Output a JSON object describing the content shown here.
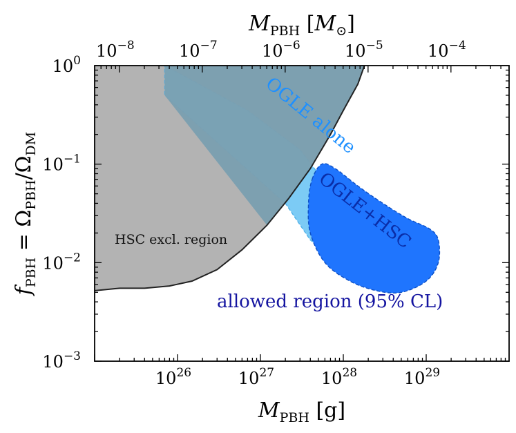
{
  "chart_data": {
    "type": "area",
    "x_scale": "log",
    "y_scale": "log",
    "x": {
      "label": "M_PBH [g]",
      "range": [
        1e+25,
        1e+30
      ],
      "tick_values": [
        1e+26,
        1e+27,
        1e+28,
        1e+29
      ]
    },
    "x_top": {
      "label": "M_PBH [M_⊙]",
      "tick_values": [
        1e-08,
        1e-07,
        1e-06,
        1e-05,
        0.0001
      ]
    },
    "y": {
      "label": "f_PBH = Ω_PBH/Ω_DM",
      "range": [
        0.001,
        1
      ],
      "tick_values": [
        0.001,
        0.01,
        0.1,
        1
      ]
    },
    "regions": [
      {
        "name": "HSC excl. region",
        "color": "#b3b3b3",
        "boundary": [
          [
            1e+25,
            0.0052
          ],
          [
            2e+25,
            0.0055
          ],
          [
            4e+25,
            0.0055
          ],
          [
            8e+25,
            0.0058
          ],
          [
            1.5e+26,
            0.0065
          ],
          [
            3e+26,
            0.0085
          ],
          [
            6e+26,
            0.0135
          ],
          [
            1.2e+27,
            0.024
          ],
          [
            2.2e+27,
            0.045
          ],
          [
            4e+27,
            0.09
          ],
          [
            7e+27,
            0.2
          ],
          [
            1e+28,
            0.35
          ],
          [
            1.5e+28,
            0.65
          ],
          [
            1.8e+28,
            1.0
          ]
        ]
      },
      {
        "name": "OGLE alone",
        "color": "#7ccbf5",
        "upper": [
          [
            7e+25,
            1.0
          ],
          [
            7e+26,
            0.35
          ],
          [
            3e+27,
            0.14
          ],
          [
            5e+27,
            0.08
          ]
        ],
        "lower": [
          [
            7e+25,
            0.5
          ],
          [
            2e+27,
            0.04
          ],
          [
            4e+27,
            0.017
          ],
          [
            8e+27,
            0.011
          ],
          [
            1.5e+28,
            0.007
          ],
          [
            3e+28,
            0.0055
          ],
          [
            5e+28,
            0.005
          ]
        ]
      },
      {
        "name": "OGLE+HSC",
        "color": "#1f75fe",
        "outline": [
          [
            4.2e+27,
            0.07
          ],
          [
            5.5e+27,
            0.1
          ],
          [
            8e+27,
            0.09
          ],
          [
            1.5e+28,
            0.06
          ],
          [
            3e+28,
            0.04
          ],
          [
            6e+28,
            0.028
          ],
          [
            1.1e+29,
            0.022
          ],
          [
            1.4e+29,
            0.017
          ],
          [
            1.4e+29,
            0.01
          ],
          [
            1e+29,
            0.0065
          ],
          [
            5e+28,
            0.005
          ],
          [
            2.5e+28,
            0.0052
          ],
          [
            1.2e+28,
            0.0065
          ],
          [
            6e+27,
            0.01
          ],
          [
            4e+27,
            0.02
          ],
          [
            3.8e+27,
            0.04
          ]
        ]
      }
    ],
    "annotations": {
      "hsc_label": "HSC excl. region",
      "ogle_label": "OGLE alone",
      "combined_label": "OGLE+HSC",
      "allowed_label": "allowed region (95% CL)"
    },
    "colors": {
      "hsc_fill": "#b3b3b3",
      "hsc_line": "#222222",
      "ogle_fill": "#7ccbf5",
      "ogle_line": "#4aaee8",
      "overlap_fill": "#7a9fb0",
      "combined_fill": "#1f75fe",
      "combined_line": "#0d4fc4",
      "ogle_text": "#1e90ff",
      "combined_text": "#0a2ea8",
      "allowed_text": "#1414a0"
    }
  }
}
